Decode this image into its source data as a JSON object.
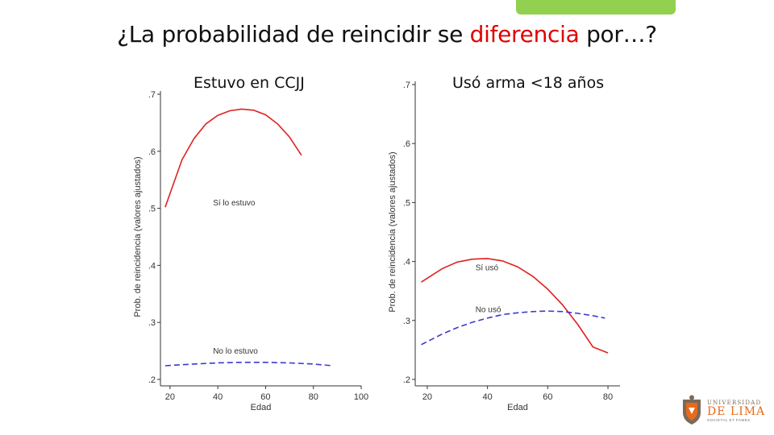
{
  "slide": {
    "title_pre": "¿La probabilidad de reincidir se ",
    "title_highlight": "diferencia",
    "title_post": " por…?",
    "accent_color": "#92d050",
    "highlight_color": "#e00000"
  },
  "logo": {
    "line1": "UNIVERSIDAD",
    "line2": "DE LIMA",
    "line3": "SOCIETAL ET FAMES",
    "color": "#e86a1a"
  },
  "chart_data": [
    {
      "type": "line",
      "title": "Estuvo en CCJJ",
      "xlabel": "Edad",
      "ylabel": "Prob. de reincidencia (valores ajustados)",
      "xlim": [
        16,
        100
      ],
      "ylim": [
        0.2,
        0.7
      ],
      "xticks": [
        20,
        40,
        60,
        80,
        100
      ],
      "yticks": [
        0.2,
        0.3,
        0.4,
        0.5,
        0.6,
        0.7
      ],
      "ytick_labels": [
        ".2",
        ".3",
        ".4",
        ".5",
        ".6",
        ".7"
      ],
      "xtick_labels": [
        "20",
        "40",
        "60",
        "80",
        "100"
      ],
      "series": [
        {
          "name": "Sí lo estuvo",
          "color": "#e02020",
          "dash": "solid",
          "x": [
            18,
            25,
            30,
            35,
            40,
            45,
            50,
            55,
            60,
            65,
            70,
            75
          ],
          "y": [
            0.502,
            0.585,
            0.622,
            0.648,
            0.663,
            0.671,
            0.674,
            0.672,
            0.664,
            0.648,
            0.625,
            0.593
          ]
        },
        {
          "name": "No lo estuvo",
          "color": "#3a3ad0",
          "dash": "dashed",
          "x": [
            18,
            30,
            40,
            50,
            60,
            70,
            80,
            88
          ],
          "y": [
            0.224,
            0.227,
            0.229,
            0.23,
            0.23,
            0.229,
            0.227,
            0.224
          ]
        }
      ],
      "annotations": [
        {
          "text": "Sí lo estuvo",
          "x": 38,
          "y": 0.505
        },
        {
          "text": "No lo estuvo",
          "x": 38,
          "y": 0.245
        }
      ]
    },
    {
      "type": "line",
      "title": "Usó arma <18 años",
      "xlabel": "Edad",
      "ylabel": "Prob. de reincidencia (valores ajustados)",
      "xlim": [
        16,
        84
      ],
      "ylim": [
        0.2,
        0.7
      ],
      "xticks": [
        20,
        40,
        60,
        80
      ],
      "yticks": [
        0.2,
        0.3,
        0.4,
        0.5,
        0.6,
        0.7
      ],
      "ytick_labels": [
        ".2",
        ".3",
        ".4",
        ".5",
        ".6",
        ".7"
      ],
      "xtick_labels": [
        "20",
        "40",
        "60",
        "80"
      ],
      "series": [
        {
          "name": "Sí usó",
          "color": "#e02020",
          "dash": "solid",
          "x": [
            18,
            25,
            30,
            35,
            40,
            45,
            50,
            55,
            60,
            65,
            70,
            75,
            80
          ],
          "y": [
            0.365,
            0.388,
            0.399,
            0.404,
            0.405,
            0.401,
            0.391,
            0.375,
            0.353,
            0.326,
            0.293,
            0.255,
            0.245
          ]
        },
        {
          "name": "No usó",
          "color": "#3a3ad0",
          "dash": "dashed",
          "x": [
            18,
            25,
            30,
            35,
            40,
            45,
            50,
            55,
            60,
            65,
            70,
            75,
            79
          ],
          "y": [
            0.259,
            0.277,
            0.288,
            0.297,
            0.304,
            0.31,
            0.313,
            0.315,
            0.316,
            0.315,
            0.312,
            0.308,
            0.304
          ]
        }
      ],
      "annotations": [
        {
          "text": "Sí usó",
          "x": 36,
          "y": 0.385
        },
        {
          "text": "No usó",
          "x": 36,
          "y": 0.314
        }
      ]
    }
  ]
}
